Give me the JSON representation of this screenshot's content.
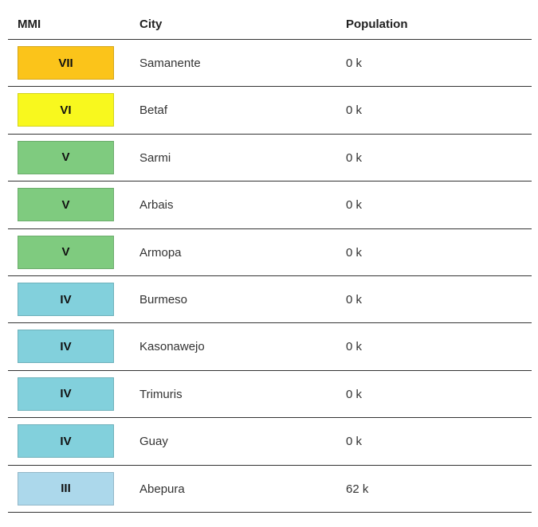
{
  "table": {
    "columns": [
      "MMI",
      "City",
      "Population"
    ],
    "rows": [
      {
        "mmi": "VII",
        "city": "Samanente",
        "population": "0 k",
        "color": "#fbc41a"
      },
      {
        "mmi": "VI",
        "city": "Betaf",
        "population": "0 k",
        "color": "#f8f81e"
      },
      {
        "mmi": "V",
        "city": "Sarmi",
        "population": "0 k",
        "color": "#7fcb7f"
      },
      {
        "mmi": "V",
        "city": "Arbais",
        "population": "0 k",
        "color": "#7fcb7f"
      },
      {
        "mmi": "V",
        "city": "Armopa",
        "population": "0 k",
        "color": "#7fcb7f"
      },
      {
        "mmi": "IV",
        "city": "Burmeso",
        "population": "0 k",
        "color": "#82d0dc"
      },
      {
        "mmi": "IV",
        "city": "Kasonawejo",
        "population": "0 k",
        "color": "#82d0dc"
      },
      {
        "mmi": "IV",
        "city": "Trimuris",
        "population": "0 k",
        "color": "#82d0dc"
      },
      {
        "mmi": "IV",
        "city": "Guay",
        "population": "0 k",
        "color": "#82d0dc"
      },
      {
        "mmi": "III",
        "city": "Abepura",
        "population": "62 k",
        "color": "#acd8eb"
      }
    ]
  }
}
